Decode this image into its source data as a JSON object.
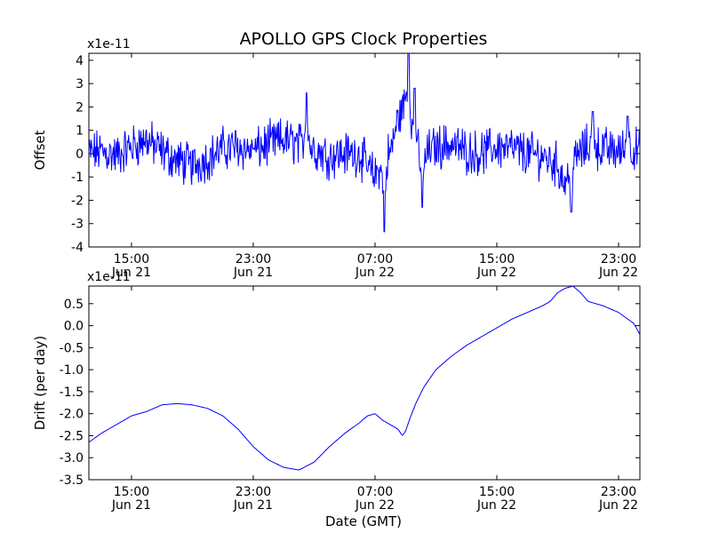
{
  "figure": {
    "title": "APOLLO GPS Clock Properties",
    "xlabel": "Date (GMT)"
  },
  "chart_data": [
    {
      "type": "line",
      "name_hint": "top-panel",
      "title": "APOLLO GPS Clock Properties",
      "ylabel": "Offset",
      "yscale_label": "x1e-11",
      "xlabel": "",
      "line_color": "#0000ff",
      "x_range_hours": [
        12.2,
        48.4
      ],
      "ylim": [
        -4,
        4.3
      ],
      "yticks": [
        -4,
        -3,
        -2,
        -1,
        0,
        1,
        2,
        3,
        4
      ],
      "ytick_labels": [
        "-4",
        "-3",
        "-2",
        "-1",
        "0",
        "1",
        "2",
        "3",
        "4"
      ],
      "xticks_hours": [
        15,
        23,
        31,
        39,
        47
      ],
      "xtick_labels": [
        [
          "15:00",
          "Jun 21"
        ],
        [
          "23:00",
          "Jun 21"
        ],
        [
          "07:00",
          "Jun 22"
        ],
        [
          "15:00",
          "Jun 22"
        ],
        [
          "23:00",
          "Jun 22"
        ]
      ],
      "series": [
        {
          "values_note": "noisy offset trace",
          "x_hours": [
            12.2,
            13.0,
            14.0,
            15.0,
            16.0,
            16.5,
            17.0,
            18.0,
            19.0,
            20.0,
            21.0,
            22.0,
            23.0,
            24.0,
            25.0,
            26.0,
            27.0,
            28.0,
            29.0,
            30.0,
            30.5,
            31.0,
            31.5,
            32.0,
            32.5,
            33.0,
            33.5,
            34.0,
            34.5,
            35.0,
            36.0,
            37.0,
            38.0,
            39.0,
            40.0,
            41.0,
            42.0,
            43.0,
            43.5,
            44.0,
            45.0,
            46.0,
            47.0,
            48.0,
            48.4
          ],
          "y_base": [
            0.0,
            0.1,
            -0.1,
            0.3,
            0.6,
            0.3,
            0.1,
            -0.3,
            -0.5,
            -0.2,
            0.2,
            0.3,
            0.1,
            0.4,
            0.6,
            0.4,
            0.2,
            -0.1,
            0.0,
            0.0,
            -0.6,
            -1.0,
            -0.2,
            0.0,
            1.5,
            2.2,
            0.3,
            -0.2,
            0.1,
            0.3,
            0.4,
            0.1,
            0.0,
            0.3,
            0.2,
            0.0,
            -0.1,
            -0.5,
            -1.3,
            -0.2,
            0.3,
            0.2,
            0.1,
            0.2,
            0.1
          ],
          "spikes": [
            [
              23.0,
              0.2
            ],
            [
              26.5,
              2.6
            ],
            [
              31.6,
              -3.35
            ],
            [
              33.2,
              4.3
            ],
            [
              33.6,
              2.8
            ],
            [
              34.1,
              -2.3
            ],
            [
              43.9,
              -2.5
            ],
            [
              45.3,
              1.8
            ],
            [
              47.6,
              1.6
            ]
          ]
        }
      ]
    },
    {
      "type": "line",
      "name_hint": "bottom-panel",
      "ylabel": "Drift (per day)",
      "yscale_label": "x1e-11",
      "xlabel": "Date (GMT)",
      "line_color": "#0000ff",
      "x_range_hours": [
        12.2,
        48.4
      ],
      "ylim": [
        -3.5,
        0.9
      ],
      "yticks": [
        -3.5,
        -3.0,
        -2.5,
        -2.0,
        -1.5,
        -1.0,
        -0.5,
        0.0,
        0.5
      ],
      "ytick_labels": [
        "-3.5",
        "-3.0",
        "-2.5",
        "-2.0",
        "-1.5",
        "-1.0",
        "-0.5",
        "0.0",
        "0.5"
      ],
      "xticks_hours": [
        15,
        23,
        31,
        39,
        47
      ],
      "xtick_labels": [
        [
          "15:00",
          "Jun 21"
        ],
        [
          "23:00",
          "Jun 21"
        ],
        [
          "07:00",
          "Jun 22"
        ],
        [
          "15:00",
          "Jun 22"
        ],
        [
          "23:00",
          "Jun 22"
        ]
      ],
      "series": [
        {
          "x_hours": [
            12.2,
            13.0,
            14.0,
            15.0,
            16.0,
            17.0,
            18.0,
            19.0,
            20.0,
            21.0,
            22.0,
            23.0,
            24.0,
            25.0,
            26.0,
            27.0,
            28.0,
            29.0,
            30.0,
            30.5,
            31.0,
            31.5,
            32.0,
            32.5,
            32.8,
            33.0,
            33.3,
            33.7,
            34.2,
            35.0,
            36.0,
            37.0,
            38.0,
            39.0,
            40.0,
            41.0,
            42.0,
            42.5,
            43.0,
            43.5,
            44.0,
            44.5,
            45.0,
            46.0,
            47.0,
            48.0,
            48.4
          ],
          "y": [
            -2.65,
            -2.45,
            -2.25,
            -2.05,
            -1.95,
            -1.8,
            -1.77,
            -1.8,
            -1.88,
            -2.05,
            -2.35,
            -2.75,
            -3.05,
            -3.22,
            -3.28,
            -3.1,
            -2.75,
            -2.45,
            -2.2,
            -2.05,
            -2.0,
            -2.15,
            -2.25,
            -2.35,
            -2.5,
            -2.4,
            -2.1,
            -1.75,
            -1.4,
            -1.0,
            -0.7,
            -0.45,
            -0.25,
            -0.05,
            0.15,
            0.3,
            0.45,
            0.55,
            0.75,
            0.85,
            0.9,
            0.75,
            0.55,
            0.45,
            0.3,
            0.05,
            -0.2
          ]
        }
      ]
    }
  ]
}
